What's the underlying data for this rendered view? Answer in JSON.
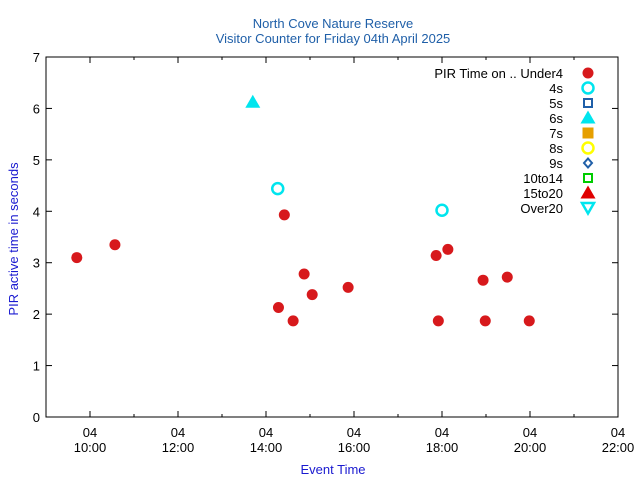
{
  "chart_data": {
    "type": "scatter",
    "title": "North Cove Nature Reserve",
    "subtitle": "Visitor Counter for Friday 04th April 2025",
    "xlabel": "Event Time",
    "ylabel": "PIR active time in seconds",
    "xlim": [
      "2025-04-04 09:00",
      "2025-04-04 22:00"
    ],
    "ylim": [
      0,
      7
    ],
    "x_ticks": [
      {
        "value": "2025-04-04 10:00",
        "line1": "04",
        "line2": "10:00"
      },
      {
        "value": "2025-04-04 12:00",
        "line1": "04",
        "line2": "12:00"
      },
      {
        "value": "2025-04-04 14:00",
        "line1": "04",
        "line2": "14:00"
      },
      {
        "value": "2025-04-04 16:00",
        "line1": "04",
        "line2": "16:00"
      },
      {
        "value": "2025-04-04 18:00",
        "line1": "04",
        "line2": "18:00"
      },
      {
        "value": "2025-04-04 20:00",
        "line1": "04",
        "line2": "20:00"
      },
      {
        "value": "2025-04-04 22:00",
        "line1": "04",
        "line2": "22:00"
      }
    ],
    "y_ticks": [
      0,
      1,
      2,
      3,
      4,
      5,
      6,
      7
    ],
    "grid": false,
    "legend_position": "top-right",
    "legend_title": "PIR Time on ..",
    "series": [
      {
        "name": "Under4",
        "marker": "circle-filled",
        "color": "#d7191c",
        "points": [
          {
            "x": "2025-04-04 09:42",
            "y": 3.1
          },
          {
            "x": "2025-04-04 10:34",
            "y": 3.35
          },
          {
            "x": "2025-04-04 14:17",
            "y": 2.13
          },
          {
            "x": "2025-04-04 14:25",
            "y": 3.93
          },
          {
            "x": "2025-04-04 14:37",
            "y": 1.87
          },
          {
            "x": "2025-04-04 14:52",
            "y": 2.78
          },
          {
            "x": "2025-04-04 15:03",
            "y": 2.38
          },
          {
            "x": "2025-04-04 15:52",
            "y": 2.52
          },
          {
            "x": "2025-04-04 17:52",
            "y": 3.14
          },
          {
            "x": "2025-04-04 17:55",
            "y": 1.87
          },
          {
            "x": "2025-04-04 18:08",
            "y": 3.26
          },
          {
            "x": "2025-04-04 18:56",
            "y": 2.66
          },
          {
            "x": "2025-04-04 18:59",
            "y": 1.87
          },
          {
            "x": "2025-04-04 19:29",
            "y": 2.72
          },
          {
            "x": "2025-04-04 19:59",
            "y": 1.87
          }
        ]
      },
      {
        "name": "4s",
        "marker": "circle-open",
        "color": "#00e5ee",
        "points": [
          {
            "x": "2025-04-04 14:16",
            "y": 4.44
          },
          {
            "x": "2025-04-04 18:00",
            "y": 4.02
          }
        ]
      },
      {
        "name": "5s",
        "marker": "square-open",
        "color": "#1f5fa8",
        "points": []
      },
      {
        "name": "6s",
        "marker": "triangle-up-filled",
        "color": "#00e5ee",
        "points": [
          {
            "x": "2025-04-04 13:42",
            "y": 6.12
          }
        ]
      },
      {
        "name": "7s",
        "marker": "square-filled",
        "color": "#e69f00",
        "points": []
      },
      {
        "name": "8s",
        "marker": "circle-open",
        "color": "#ffff00",
        "points": []
      },
      {
        "name": "9s",
        "marker": "diamond-open",
        "color": "#1f5fa8",
        "points": []
      },
      {
        "name": "10to14",
        "marker": "square-open",
        "color": "#00cc00",
        "points": []
      },
      {
        "name": "15to20",
        "marker": "triangle-up-filled",
        "color": "#e00000",
        "points": []
      },
      {
        "name": "Over20",
        "marker": "triangle-down-open",
        "color": "#00e5ee",
        "points": []
      }
    ]
  }
}
